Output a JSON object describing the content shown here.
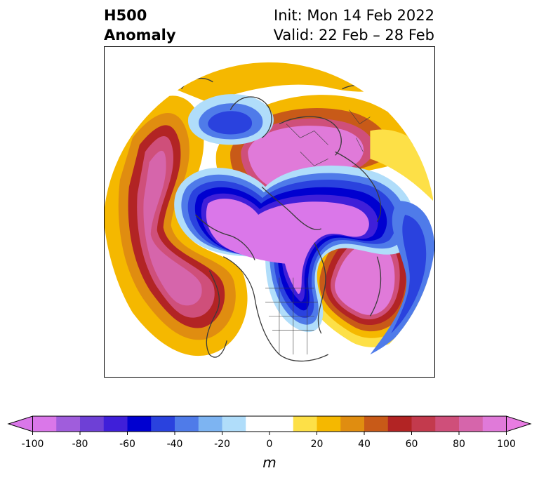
{
  "title": {
    "line1_left": "H500",
    "line2_left": "Anomaly",
    "line1_right": "Init: Mon 14 Feb 2022",
    "line2_right": "Valid: 22 Feb – 28 Feb"
  },
  "map": {
    "projection": "north-polar-stereographic",
    "field": "500 hPa geopotential height anomaly",
    "features": [
      {
        "name": "ridge-north-pacific-alaska",
        "sign": "positive",
        "peak": 100
      },
      {
        "name": "ridge-north-atlantic-europe",
        "sign": "positive",
        "peak": 100
      },
      {
        "name": "ridge-east-siberia-arctic",
        "sign": "positive",
        "peak": 100
      },
      {
        "name": "trough-canada-hudson-bay",
        "sign": "negative",
        "peak": -100
      },
      {
        "name": "trough-greenland-arctic",
        "sign": "negative",
        "peak": -100
      },
      {
        "name": "trough-northern-siberia",
        "sign": "negative",
        "peak": -60
      }
    ]
  },
  "colorbar": {
    "levels": [
      -100,
      -90,
      -80,
      -70,
      -60,
      -50,
      -40,
      -30,
      -20,
      -10,
      0,
      10,
      20,
      30,
      40,
      50,
      60,
      70,
      80,
      90,
      100
    ],
    "colors": [
      "#da77e9",
      "#a05ddc",
      "#6e40d6",
      "#3f1fd9",
      "#0000d0",
      "#2a42de",
      "#4f7be9",
      "#7db4f2",
      "#b0ddfa",
      "#ffffff",
      "#ffffff",
      "#fde047",
      "#f5b800",
      "#e08d10",
      "#c85a18",
      "#b22424",
      "#c33a4d",
      "#cf4f7a",
      "#d665ab",
      "#e07ad9"
    ],
    "under_color": "#da77e9",
    "over_color": "#e87ce2",
    "tick_labels": [
      "-100",
      "-80",
      "-60",
      "-40",
      "-20",
      "0",
      "20",
      "40",
      "60",
      "80",
      "100"
    ],
    "unit": "m"
  }
}
